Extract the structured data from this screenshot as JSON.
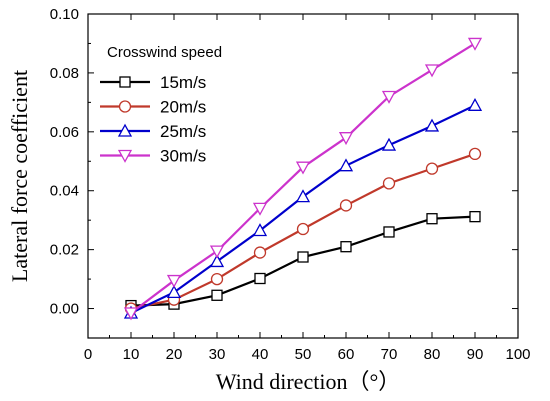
{
  "chart_data": {
    "type": "line",
    "xlabel": "Wind direction（°）",
    "ylabel": "Lateral force coefficient",
    "xlim": [
      0,
      100
    ],
    "ylim": [
      -0.01,
      0.1
    ],
    "x_ticks": [
      "0",
      "10",
      "20",
      "30",
      "40",
      "50",
      "60",
      "70",
      "80",
      "90",
      "100"
    ],
    "y_ticks": [
      "0.00",
      "0.02",
      "0.04",
      "0.06",
      "0.08",
      "0.10"
    ],
    "grid": false,
    "legend_title": "Crosswind speed",
    "legend_position": "top-left",
    "x": [
      10,
      20,
      30,
      40,
      50,
      60,
      70,
      80,
      90
    ],
    "series": [
      {
        "name": "15m/s",
        "color": "#000000",
        "marker": "square",
        "values": [
          0.001,
          0.0015,
          0.0045,
          0.0102,
          0.0175,
          0.021,
          0.026,
          0.0305,
          0.0312
        ]
      },
      {
        "name": "20m/s",
        "color": "#c0392b",
        "marker": "circle",
        "values": [
          0.0,
          0.003,
          0.01,
          0.019,
          0.027,
          0.035,
          0.0425,
          0.0475,
          0.0525
        ]
      },
      {
        "name": "25m/s",
        "color": "#0000cc",
        "marker": "triangle-up",
        "values": [
          -0.0015,
          0.0055,
          0.016,
          0.0265,
          0.038,
          0.0485,
          0.0555,
          0.062,
          0.069
        ]
      },
      {
        "name": "30m/s",
        "color": "#cc33cc",
        "marker": "triangle-down",
        "values": [
          -0.0015,
          0.0095,
          0.0195,
          0.034,
          0.048,
          0.058,
          0.072,
          0.081,
          0.09
        ]
      }
    ]
  }
}
